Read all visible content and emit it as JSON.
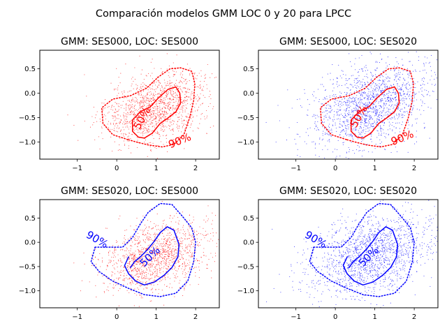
{
  "figure": {
    "suptitle": "Comparación modelos GMM LOC 0 y 20 para LPCC"
  },
  "colors": {
    "red": "#ff0000",
    "blue": "#0000ff",
    "axis": "#000000"
  },
  "chart_data": [
    {
      "type": "scatter",
      "title": "GMM: SES000, LOC: SES000",
      "xlabel": "",
      "ylabel": "",
      "xlim": [
        -1.95,
        2.6
      ],
      "ylim": [
        -1.35,
        0.88
      ],
      "xticks": [
        -1,
        0,
        1,
        2
      ],
      "yticks": [
        0.5,
        0.0,
        -0.5,
        -1.0
      ],
      "xtick_labels": [
        "−1",
        "0",
        "1",
        "2"
      ],
      "ytick_labels": [
        "0.5",
        "0.0",
        "−0.5",
        "−1.0"
      ],
      "grid": false,
      "points_color": "red",
      "points_center": [
        1.0,
        -0.3
      ],
      "points_spread": [
        0.65,
        0.35
      ],
      "points_count": 1400,
      "contours": [
        {
          "label": "50%",
          "color": "red",
          "style": "solid",
          "label_pos": [
            0.65,
            -0.52
          ],
          "label_rot": -60,
          "points": [
            [
              0.55,
              -0.9
            ],
            [
              0.4,
              -0.78
            ],
            [
              0.4,
              -0.55
            ],
            [
              0.6,
              -0.38
            ],
            [
              0.85,
              -0.28
            ],
            [
              1.05,
              -0.1
            ],
            [
              1.3,
              0.08
            ],
            [
              1.5,
              0.13
            ],
            [
              1.6,
              0.0
            ],
            [
              1.62,
              -0.2
            ],
            [
              1.5,
              -0.38
            ],
            [
              1.28,
              -0.52
            ],
            [
              1.1,
              -0.62
            ],
            [
              0.9,
              -0.82
            ],
            [
              0.7,
              -0.92
            ],
            [
              0.55,
              -0.9
            ]
          ]
        },
        {
          "label": "90%",
          "color": "red",
          "style": "dotted",
          "label_pos": [
            1.6,
            -0.98
          ],
          "label_rot": -22,
          "points": [
            [
              0.28,
              -0.95
            ],
            [
              -0.1,
              -0.85
            ],
            [
              -0.35,
              -0.62
            ],
            [
              -0.38,
              -0.3
            ],
            [
              -0.1,
              -0.12
            ],
            [
              0.35,
              -0.05
            ],
            [
              0.75,
              0.1
            ],
            [
              1.05,
              0.33
            ],
            [
              1.35,
              0.5
            ],
            [
              1.62,
              0.52
            ],
            [
              1.9,
              0.45
            ],
            [
              1.98,
              0.2
            ],
            [
              1.95,
              -0.15
            ],
            [
              1.85,
              -0.5
            ],
            [
              1.7,
              -0.85
            ],
            [
              1.45,
              -1.05
            ],
            [
              1.15,
              -1.1
            ],
            [
              0.8,
              -1.06
            ],
            [
              0.5,
              -1.0
            ],
            [
              0.28,
              -0.95
            ]
          ]
        }
      ]
    },
    {
      "type": "scatter",
      "title": "GMM: SES000, LOC: SES020",
      "xlabel": "",
      "ylabel": "",
      "xlim": [
        -1.95,
        2.6
      ],
      "ylim": [
        -1.35,
        0.88
      ],
      "xticks": [
        -1,
        0,
        1,
        2
      ],
      "yticks": [
        0.5,
        0.0,
        -0.5,
        -1.0
      ],
      "xtick_labels": [
        "−1",
        "0",
        "1",
        "2"
      ],
      "ytick_labels": [
        "0.5",
        "0.0",
        "−0.5",
        "−1.0"
      ],
      "grid": false,
      "points_color": "blue",
      "points_center": [
        0.9,
        -0.25
      ],
      "points_spread": [
        0.75,
        0.42
      ],
      "points_count": 1600,
      "contours": [
        {
          "label": "50%",
          "color": "red",
          "style": "solid",
          "label_pos": [
            0.6,
            -0.48
          ],
          "label_rot": -60,
          "points": [
            [
              0.55,
              -0.9
            ],
            [
              0.4,
              -0.78
            ],
            [
              0.4,
              -0.55
            ],
            [
              0.6,
              -0.38
            ],
            [
              0.85,
              -0.28
            ],
            [
              1.05,
              -0.1
            ],
            [
              1.3,
              0.08
            ],
            [
              1.5,
              0.13
            ],
            [
              1.6,
              0.0
            ],
            [
              1.62,
              -0.2
            ],
            [
              1.5,
              -0.38
            ],
            [
              1.28,
              -0.52
            ],
            [
              1.1,
              -0.62
            ],
            [
              0.9,
              -0.82
            ],
            [
              0.7,
              -0.92
            ],
            [
              0.55,
              -0.9
            ]
          ]
        },
        {
          "label": "90%",
          "color": "red",
          "style": "dotted",
          "label_pos": [
            1.7,
            -0.92
          ],
          "label_rot": -22,
          "points": [
            [
              0.28,
              -0.95
            ],
            [
              -0.1,
              -0.85
            ],
            [
              -0.35,
              -0.62
            ],
            [
              -0.38,
              -0.3
            ],
            [
              -0.1,
              -0.12
            ],
            [
              0.35,
              -0.05
            ],
            [
              0.75,
              0.1
            ],
            [
              1.05,
              0.33
            ],
            [
              1.35,
              0.5
            ],
            [
              1.62,
              0.52
            ],
            [
              1.9,
              0.45
            ],
            [
              1.98,
              0.2
            ],
            [
              1.95,
              -0.15
            ],
            [
              1.85,
              -0.5
            ],
            [
              1.7,
              -0.85
            ],
            [
              1.45,
              -1.05
            ],
            [
              1.15,
              -1.1
            ],
            [
              0.8,
              -1.06
            ],
            [
              0.5,
              -1.0
            ],
            [
              0.28,
              -0.95
            ]
          ]
        }
      ]
    },
    {
      "type": "scatter",
      "title": "GMM: SES020, LOC: SES000",
      "xlabel": "",
      "ylabel": "",
      "xlim": [
        -1.95,
        2.6
      ],
      "ylim": [
        -1.35,
        0.88
      ],
      "xticks": [
        -1,
        0,
        1,
        2
      ],
      "yticks": [
        0.5,
        0.0,
        -0.5,
        -1.0
      ],
      "xtick_labels": [
        "−1",
        "0",
        "1",
        "2"
      ],
      "ytick_labels": [
        "0.5",
        "0.0",
        "−0.5",
        "−1.0"
      ],
      "grid": false,
      "points_color": "red",
      "points_center": [
        1.0,
        -0.3
      ],
      "points_spread": [
        0.65,
        0.35
      ],
      "points_count": 1400,
      "contours": [
        {
          "label": "50%",
          "color": "blue",
          "style": "solid",
          "label_pos": [
            0.85,
            -0.3
          ],
          "label_rot": -45,
          "points": [
            [
              0.3,
              -0.3
            ],
            [
              0.2,
              -0.48
            ],
            [
              0.3,
              -0.65
            ],
            [
              0.48,
              -0.8
            ],
            [
              0.7,
              -0.88
            ],
            [
              0.95,
              -0.82
            ],
            [
              1.2,
              -0.68
            ],
            [
              1.4,
              -0.52
            ],
            [
              1.55,
              -0.3
            ],
            [
              1.58,
              -0.05
            ],
            [
              1.45,
              0.25
            ],
            [
              1.28,
              0.32
            ],
            [
              1.1,
              0.2
            ],
            [
              0.95,
              0.02
            ],
            [
              0.78,
              -0.15
            ],
            [
              0.6,
              -0.3
            ],
            [
              0.45,
              -0.4
            ],
            [
              0.35,
              -0.52
            ]
          ]
        },
        {
          "label": "90%",
          "color": "blue",
          "style": "dotted",
          "label_pos": [
            -0.5,
            0.05
          ],
          "label_rot": 30,
          "points": [
            [
              -0.55,
              -0.1
            ],
            [
              -0.2,
              -0.1
            ],
            [
              0.15,
              -0.1
            ],
            [
              0.4,
              0.1
            ],
            [
              0.6,
              0.38
            ],
            [
              0.8,
              0.62
            ],
            [
              1.1,
              0.8
            ],
            [
              1.4,
              0.78
            ],
            [
              1.65,
              0.55
            ],
            [
              1.9,
              0.3
            ],
            [
              2.0,
              0.0
            ],
            [
              1.95,
              -0.4
            ],
            [
              1.8,
              -0.8
            ],
            [
              1.5,
              -1.05
            ],
            [
              1.1,
              -1.12
            ],
            [
              0.7,
              -1.08
            ],
            [
              0.3,
              -0.95
            ],
            [
              -0.1,
              -0.8
            ],
            [
              -0.45,
              -0.6
            ],
            [
              -0.65,
              -0.4
            ],
            [
              -0.55,
              -0.1
            ]
          ]
        }
      ]
    },
    {
      "type": "scatter",
      "title": "GMM: SES020, LOC: SES020",
      "xlabel": "",
      "ylabel": "",
      "xlim": [
        -1.95,
        2.6
      ],
      "ylim": [
        -1.35,
        0.88
      ],
      "xticks": [
        -1,
        0,
        1,
        2
      ],
      "yticks": [
        0.5,
        0.0,
        -0.5,
        -1.0
      ],
      "xtick_labels": [
        "−1",
        "0",
        "1",
        "2"
      ],
      "ytick_labels": [
        "0.5",
        "0.0",
        "−0.5",
        "−1.0"
      ],
      "grid": false,
      "points_color": "blue",
      "points_center": [
        0.9,
        -0.25
      ],
      "points_spread": [
        0.75,
        0.42
      ],
      "points_count": 1600,
      "contours": [
        {
          "label": "50%",
          "color": "blue",
          "style": "solid",
          "label_pos": [
            0.85,
            -0.3
          ],
          "label_rot": -45,
          "points": [
            [
              0.3,
              -0.3
            ],
            [
              0.2,
              -0.48
            ],
            [
              0.3,
              -0.65
            ],
            [
              0.48,
              -0.8
            ],
            [
              0.7,
              -0.88
            ],
            [
              0.95,
              -0.82
            ],
            [
              1.2,
              -0.68
            ],
            [
              1.4,
              -0.52
            ],
            [
              1.55,
              -0.3
            ],
            [
              1.58,
              -0.05
            ],
            [
              1.45,
              0.25
            ],
            [
              1.28,
              0.32
            ],
            [
              1.1,
              0.2
            ],
            [
              0.95,
              0.02
            ],
            [
              0.78,
              -0.15
            ],
            [
              0.6,
              -0.3
            ],
            [
              0.45,
              -0.4
            ],
            [
              0.35,
              -0.52
            ]
          ]
        },
        {
          "label": "90%",
          "color": "blue",
          "style": "dotted",
          "label_pos": [
            -0.5,
            0.05
          ],
          "label_rot": 30,
          "points": [
            [
              -0.55,
              -0.1
            ],
            [
              -0.2,
              -0.1
            ],
            [
              0.15,
              -0.1
            ],
            [
              0.4,
              0.1
            ],
            [
              0.6,
              0.38
            ],
            [
              0.8,
              0.62
            ],
            [
              1.1,
              0.8
            ],
            [
              1.4,
              0.78
            ],
            [
              1.65,
              0.55
            ],
            [
              1.9,
              0.3
            ],
            [
              2.0,
              0.0
            ],
            [
              1.95,
              -0.4
            ],
            [
              1.8,
              -0.8
            ],
            [
              1.5,
              -1.05
            ],
            [
              1.1,
              -1.12
            ],
            [
              0.7,
              -1.08
            ],
            [
              0.3,
              -0.95
            ],
            [
              -0.1,
              -0.8
            ],
            [
              -0.45,
              -0.6
            ],
            [
              -0.65,
              -0.4
            ],
            [
              -0.55,
              -0.1
            ]
          ]
        }
      ]
    }
  ]
}
